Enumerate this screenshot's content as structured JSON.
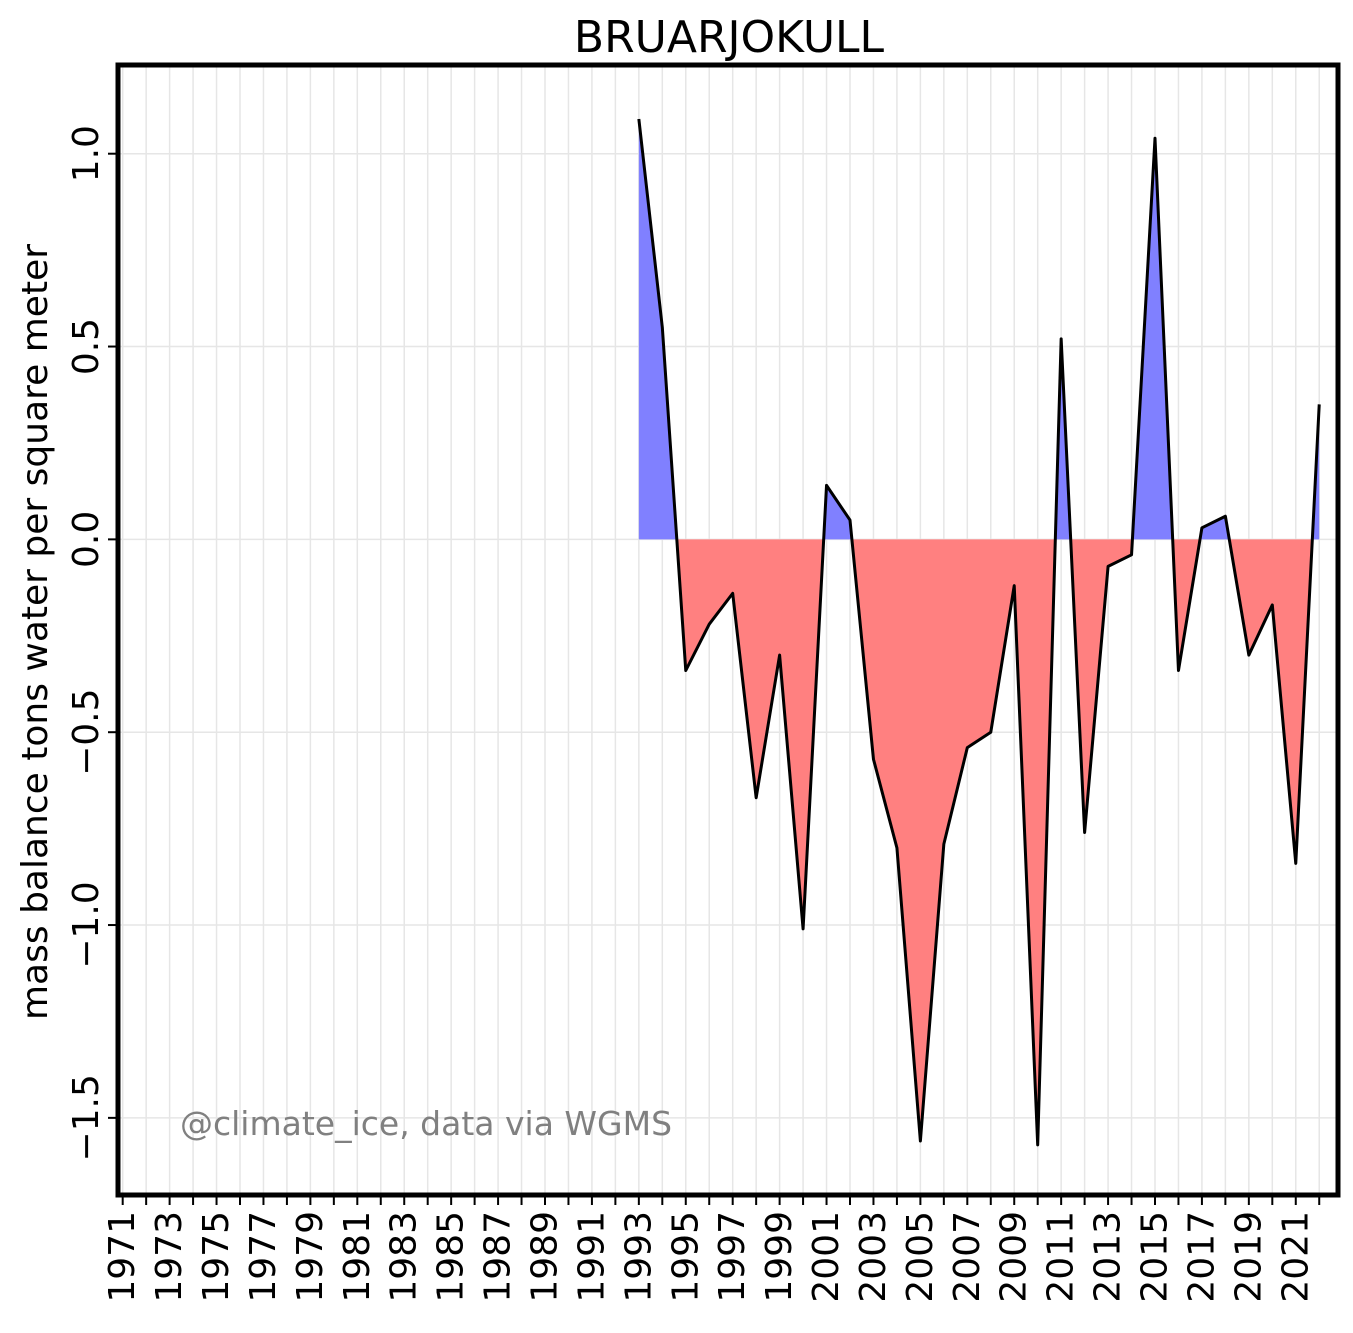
{
  "chart_data": {
    "type": "area",
    "title": "BRUARJOKULL",
    "xlabel": "",
    "ylabel": "mass balance tons water per square meter",
    "xlim": [
      1970.8,
      2022.8
    ],
    "ylim": [
      -1.7,
      1.23
    ],
    "yticks": [
      -1.5,
      -1.0,
      -0.5,
      0.0,
      0.5,
      1.0
    ],
    "ytick_labels": [
      "−1.5",
      "−1.0",
      "−0.5",
      "0.0",
      "0.5",
      "1.0"
    ],
    "xticks": [
      1971,
      1972,
      1973,
      1974,
      1975,
      1976,
      1977,
      1978,
      1979,
      1980,
      1981,
      1982,
      1983,
      1984,
      1985,
      1986,
      1987,
      1988,
      1989,
      1990,
      1991,
      1992,
      1993,
      1994,
      1995,
      1996,
      1997,
      1998,
      1999,
      2000,
      2001,
      2002,
      2003,
      2004,
      2005,
      2006,
      2007,
      2008,
      2009,
      2010,
      2011,
      2012,
      2013,
      2014,
      2015,
      2016,
      2017,
      2018,
      2019,
      2020,
      2021,
      2022
    ],
    "xtick_labels": [
      "1971",
      "1973",
      "1975",
      "1977",
      "1979",
      "1981",
      "1983",
      "1985",
      "1987",
      "1989",
      "1991",
      "1993",
      "1995",
      "1997",
      "1999",
      "2001",
      "2003",
      "2005",
      "2007",
      "2009",
      "2011",
      "2013",
      "2015",
      "2017",
      "2019",
      "2021"
    ],
    "grid": true,
    "positive_color": "#8080ff",
    "negative_color": "#ff8080",
    "line_color": "#000000",
    "x": [
      1993,
      1994,
      1995,
      1996,
      1997,
      1998,
      1999,
      2000,
      2001,
      2002,
      2003,
      2004,
      2005,
      2006,
      2007,
      2008,
      2009,
      2010,
      2011,
      2012,
      2013,
      2014,
      2015,
      2016,
      2017,
      2018,
      2019,
      2020,
      2021,
      2022
    ],
    "values": [
      1.09,
      0.55,
      -0.34,
      -0.22,
      -0.14,
      -0.67,
      -0.3,
      -1.01,
      0.14,
      0.05,
      -0.57,
      -0.8,
      -1.56,
      -0.79,
      -0.54,
      -0.5,
      -0.12,
      -1.57,
      0.52,
      -0.76,
      -0.07,
      -0.04,
      1.04,
      -0.34,
      0.03,
      0.06,
      -0.3,
      -0.17,
      -0.84,
      0.35
    ],
    "annotation": "@climate_ice, data via WGMS",
    "annotation_color": "#808080"
  }
}
